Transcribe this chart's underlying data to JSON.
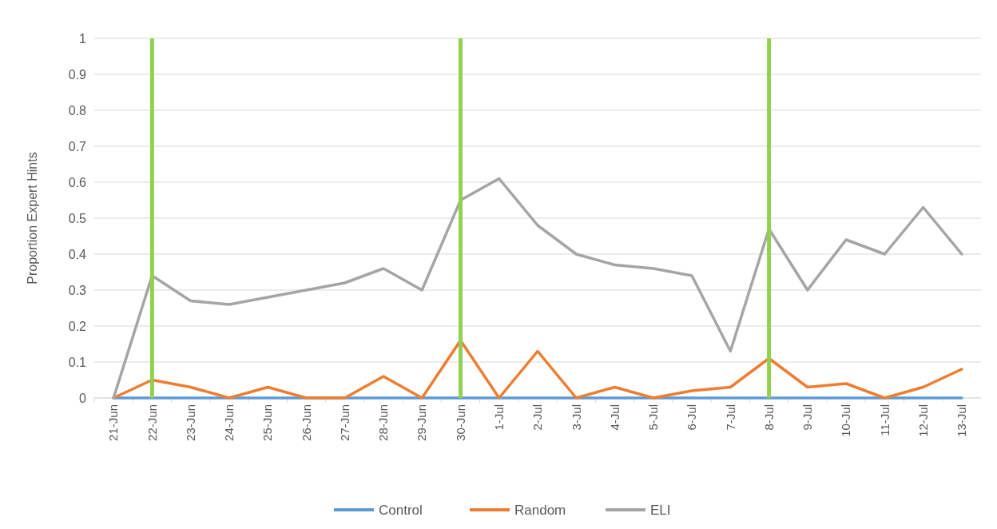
{
  "chart_data": {
    "type": "line",
    "ylabel": "Proportion Expert Hints",
    "categories": [
      "21-Jun",
      "22-Jun",
      "23-Jun",
      "24-Jun",
      "25-Jun",
      "26-Jun",
      "27-Jun",
      "28-Jun",
      "29-Jun",
      "30-Jun",
      "1-Jul",
      "2-Jul",
      "3-Jul",
      "4-Jul",
      "5-Jul",
      "6-Jul",
      "7-Jul",
      "8-Jul",
      "9-Jul",
      "10-Jul",
      "11-Jul",
      "12-Jul",
      "13-Jul"
    ],
    "series": [
      {
        "name": "Control",
        "color": "#5b9bd5",
        "values": [
          0,
          0,
          0,
          0,
          0,
          0,
          0,
          0,
          0,
          0,
          0,
          0,
          0,
          0,
          0,
          0,
          0,
          0,
          0,
          0,
          0,
          0,
          0
        ]
      },
      {
        "name": "Random",
        "color": "#ed7d31",
        "values": [
          0,
          0.05,
          0.03,
          0,
          0.03,
          0,
          0,
          0.06,
          0,
          0.16,
          0,
          0.13,
          0,
          0.03,
          0,
          0.02,
          0.03,
          0.11,
          0.03,
          0.04,
          0,
          0.03,
          0.08
        ]
      },
      {
        "name": "ELI",
        "color": "#a5a5a5",
        "values": [
          0,
          0.34,
          0.27,
          0.26,
          0.28,
          0.3,
          0.32,
          0.36,
          0.3,
          0.55,
          0.61,
          0.48,
          0.4,
          0.37,
          0.36,
          0.34,
          0.13,
          0.47,
          0.3,
          0.44,
          0.4,
          0.53,
          0.4
        ]
      }
    ],
    "ylim": [
      0,
      1
    ],
    "yticks": [
      0,
      0.1,
      0.2,
      0.3,
      0.4,
      0.5,
      0.6,
      0.7,
      0.8,
      0.9,
      1
    ],
    "grid": "y",
    "legend": "bottom",
    "marker": "none",
    "line_style": "solid",
    "ref_lines": [
      {
        "axis": "x",
        "value": "22-Jun",
        "color": "#92d050"
      },
      {
        "axis": "x",
        "value": "30-Jun",
        "color": "#92d050"
      },
      {
        "axis": "x",
        "value": "8-Jul",
        "color": "#92d050"
      }
    ]
  }
}
